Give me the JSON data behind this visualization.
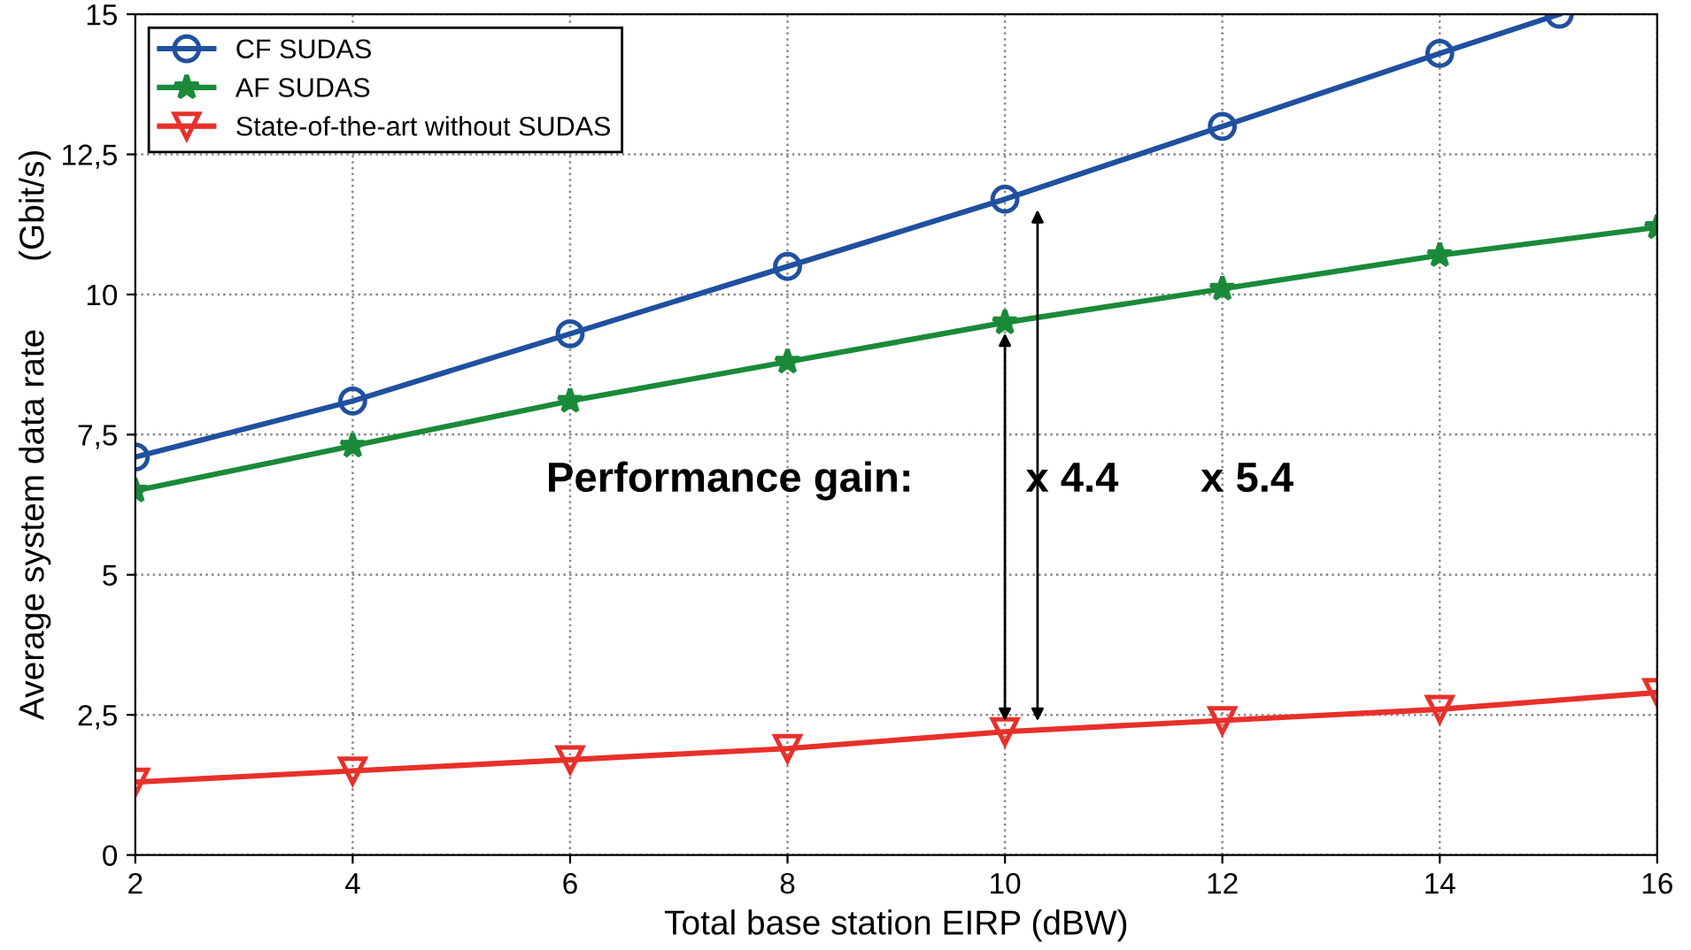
{
  "chart_data": {
    "type": "line",
    "xlabel": "Total base station EIRP (dBW)",
    "ylabel": "Average system data rate       (Gbit/s)",
    "x": [
      2,
      4,
      6,
      8,
      10,
      12,
      14,
      16
    ],
    "series": [
      {
        "name": "CF SUDAS",
        "color": "#2050a0",
        "marker": "circle",
        "x": [
          2,
          4,
          6,
          8,
          10,
          12,
          14,
          15.1
        ],
        "values": [
          7.1,
          8.1,
          9.3,
          10.5,
          11.7,
          13.0,
          14.3,
          15.0
        ]
      },
      {
        "name": "AF SUDAS",
        "color": "#1a8a3a",
        "marker": "star",
        "values": [
          6.5,
          7.3,
          8.1,
          8.8,
          9.5,
          10.1,
          10.7,
          11.2
        ]
      },
      {
        "name": "State-of-the-art without SUDAS",
        "color": "#e8302a",
        "marker": "triangle",
        "values": [
          1.3,
          1.5,
          1.7,
          1.9,
          2.2,
          2.4,
          2.6,
          2.9
        ]
      }
    ],
    "annotations": [
      "Performance gain:",
      "x 4.4",
      "x 5.4"
    ],
    "xlim": [
      2,
      16
    ],
    "xticks": [
      2,
      4,
      6,
      8,
      10,
      12,
      14,
      16
    ],
    "ylim": [
      0,
      15
    ],
    "yticks": [
      0,
      {
        "value": 2.5,
        "label": "2,5"
      },
      5,
      {
        "value": 7.5,
        "label": "7,5"
      },
      10,
      {
        "value": 12.5,
        "label": "12,5"
      },
      15
    ],
    "grid": true,
    "legend": "top left",
    "line_style": "solid"
  }
}
